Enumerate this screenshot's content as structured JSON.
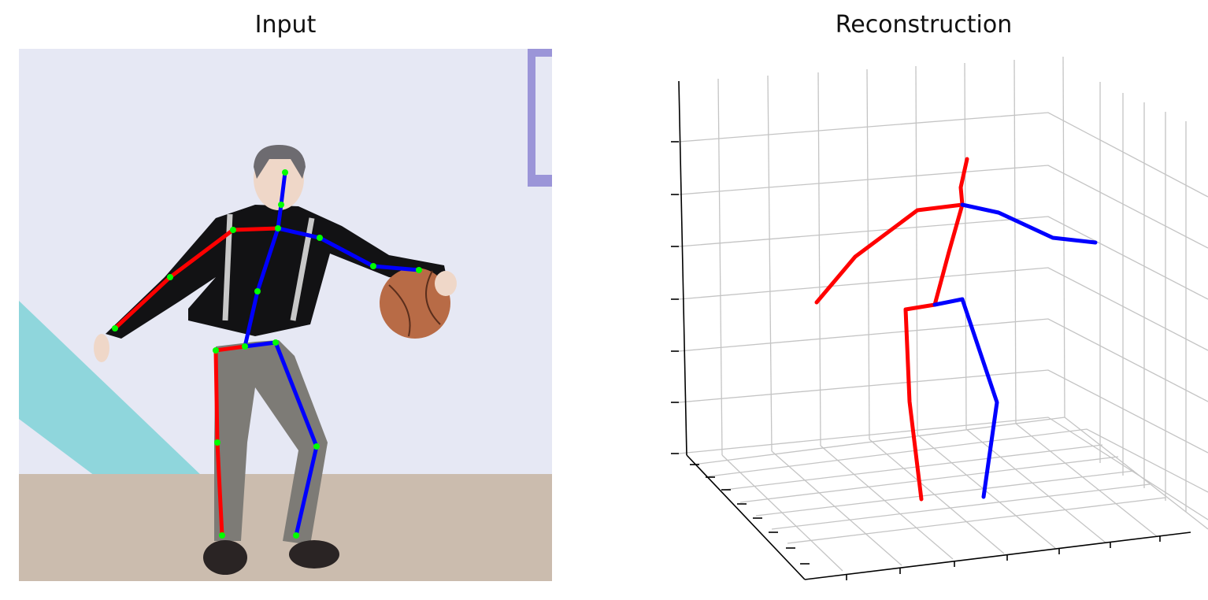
{
  "titles": {
    "input": "Input",
    "reconstruction": "Reconstruction"
  },
  "colors": {
    "right_limb": "#ff0000",
    "left_limb": "#0000ff",
    "keypoint": "#00ff00",
    "grid": "#c8c8c8",
    "axis": "#000000"
  }
}
